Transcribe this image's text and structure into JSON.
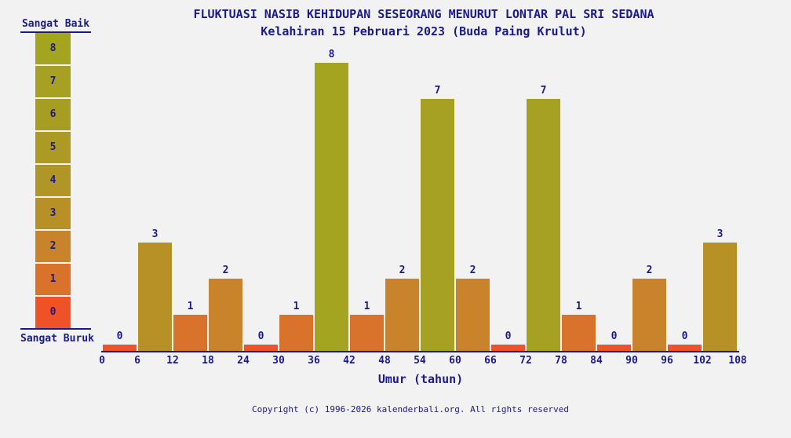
{
  "title": "FLUKTUASI NASIB KEHIDUPAN SESEORANG MENURUT LONTAR PAL SRI SEDANA",
  "subtitle": "Kelahiran 15 Pebruari 2023 (Buda Paing Krulut)",
  "legend": {
    "top_label": "Sangat Baik",
    "bottom_label": "Sangat Buruk",
    "levels": [
      {
        "value": 8,
        "color": "#a3a41f"
      },
      {
        "value": 7,
        "color": "#a6a122"
      },
      {
        "value": 6,
        "color": "#a89d23"
      },
      {
        "value": 5,
        "color": "#ac9a25"
      },
      {
        "value": 4,
        "color": "#b09627"
      },
      {
        "value": 3,
        "color": "#b89126"
      },
      {
        "value": 2,
        "color": "#c8832b"
      },
      {
        "value": 1,
        "color": "#d9722a"
      },
      {
        "value": 0,
        "color": "#ee5226"
      }
    ]
  },
  "chart_data": {
    "type": "bar",
    "title": "FLUKTUASI NASIB KEHIDUPAN SESEORANG MENURUT LONTAR PAL SRI SEDANA",
    "subtitle": "Kelahiran 15 Pebruari 2023 (Buda Paing Krulut)",
    "xlabel": "Umur (tahun)",
    "ylabel": "",
    "ylim": [
      0,
      8
    ],
    "x_ticks": [
      0,
      6,
      12,
      18,
      24,
      30,
      36,
      42,
      48,
      54,
      60,
      66,
      72,
      78,
      84,
      90,
      96,
      102,
      108
    ],
    "categories": [
      "0-6",
      "6-12",
      "12-18",
      "18-24",
      "24-30",
      "30-36",
      "36-42",
      "42-48",
      "48-54",
      "54-60",
      "60-66",
      "66-72",
      "72-78",
      "78-84",
      "84-90",
      "90-96",
      "96-102",
      "102-108"
    ],
    "values": [
      0,
      3,
      1,
      2,
      0,
      1,
      8,
      1,
      2,
      7,
      2,
      0,
      7,
      1,
      0,
      2,
      0,
      3
    ],
    "value_colors": {
      "0": "#ee5226",
      "1": "#d9722a",
      "2": "#c8832b",
      "3": "#b89126",
      "4": "#b09627",
      "5": "#ac9a25",
      "6": "#a89d23",
      "7": "#a6a122",
      "8": "#a3a41f"
    },
    "legend_position": "left",
    "grid": false
  },
  "footer": {
    "copyright": "Copyright (c) 1996-2026 kalenderbali.org. All rights reserved"
  },
  "colors": {
    "text": "#1a1a8c",
    "axis": "#1a1a8c",
    "background": "#f2f2f2"
  }
}
